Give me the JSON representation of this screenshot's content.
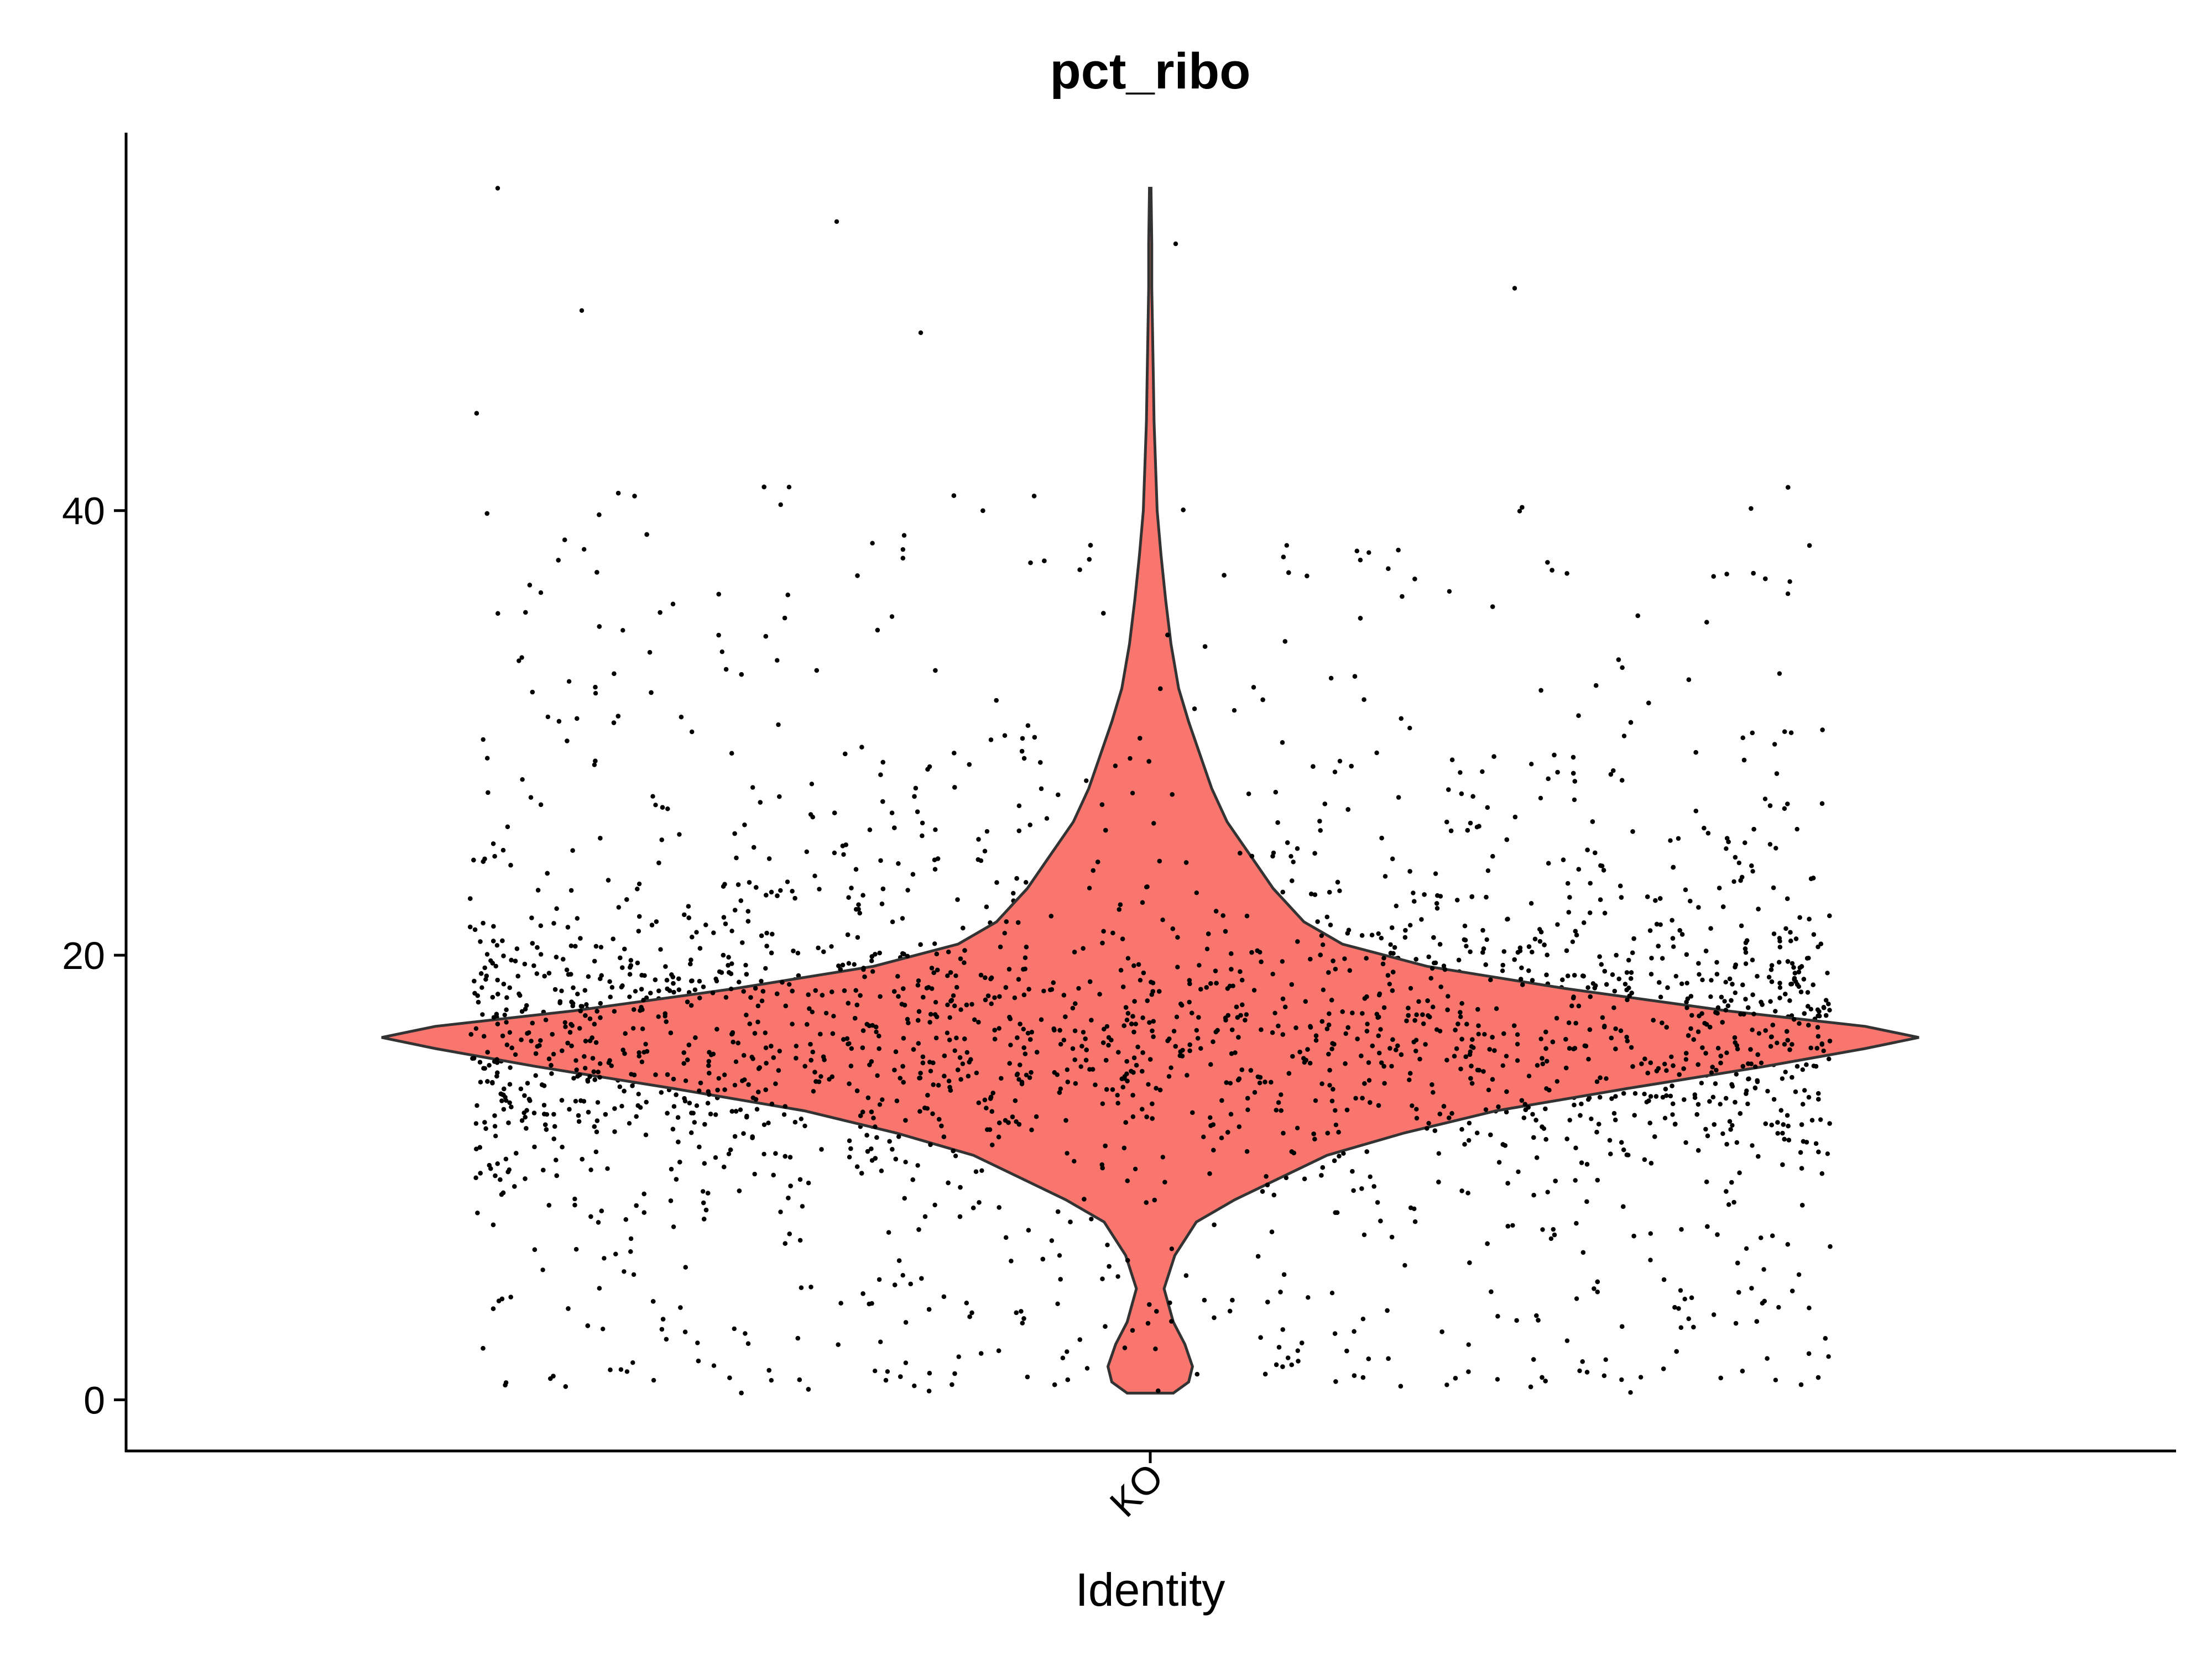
{
  "chart_data": {
    "type": "violin",
    "title": "pct_ribo",
    "xlabel": "Identity",
    "ylabel": "",
    "categories": [
      "KO"
    ],
    "x_tick_labels": [
      "KO"
    ],
    "y_ticks": [
      0,
      20,
      40
    ],
    "y_tick_labels": [
      "0",
      "20",
      "40"
    ],
    "ylim": [
      -2.3,
      57
    ],
    "grid": false,
    "legend": "none",
    "violin": {
      "category": "KO",
      "fill_color": "#F8766D",
      "outline_color": "#333333",
      "min": 0.3,
      "max": 54.5,
      "density_profile": [
        [
          0.3,
          0.03
        ],
        [
          0.8,
          0.05
        ],
        [
          1.5,
          0.055
        ],
        [
          2.5,
          0.045
        ],
        [
          3.5,
          0.03
        ],
        [
          5.0,
          0.018
        ],
        [
          6.5,
          0.032
        ],
        [
          8.0,
          0.06
        ],
        [
          9.0,
          0.11
        ],
        [
          10.0,
          0.17
        ],
        [
          11.0,
          0.23
        ],
        [
          12.0,
          0.33
        ],
        [
          13.0,
          0.45
        ],
        [
          14.0,
          0.62
        ],
        [
          15.0,
          0.8
        ],
        [
          15.8,
          0.93
        ],
        [
          16.3,
          1.0
        ],
        [
          16.8,
          0.93
        ],
        [
          17.5,
          0.75
        ],
        [
          18.5,
          0.54
        ],
        [
          19.5,
          0.36
        ],
        [
          20.5,
          0.25
        ],
        [
          21.5,
          0.2
        ],
        [
          23.0,
          0.16
        ],
        [
          24.5,
          0.13
        ],
        [
          26.0,
          0.1
        ],
        [
          27.5,
          0.08
        ],
        [
          29.0,
          0.065
        ],
        [
          30.5,
          0.05
        ],
        [
          32.0,
          0.037
        ],
        [
          34.0,
          0.027
        ],
        [
          36.0,
          0.02
        ],
        [
          38.0,
          0.014
        ],
        [
          40.0,
          0.009
        ],
        [
          42.0,
          0.007
        ],
        [
          44.0,
          0.005
        ],
        [
          46.0,
          0.004
        ],
        [
          48.0,
          0.003
        ],
        [
          50.0,
          0.002
        ],
        [
          52.0,
          0.002
        ],
        [
          54.5,
          0.001
        ]
      ]
    },
    "points": {
      "color": "#000000",
      "approx_count": 7000,
      "median": 16.3,
      "notable_high_values": [
        54.5,
        53.0,
        52.0,
        50.0,
        49.0,
        48.0
      ]
    }
  }
}
